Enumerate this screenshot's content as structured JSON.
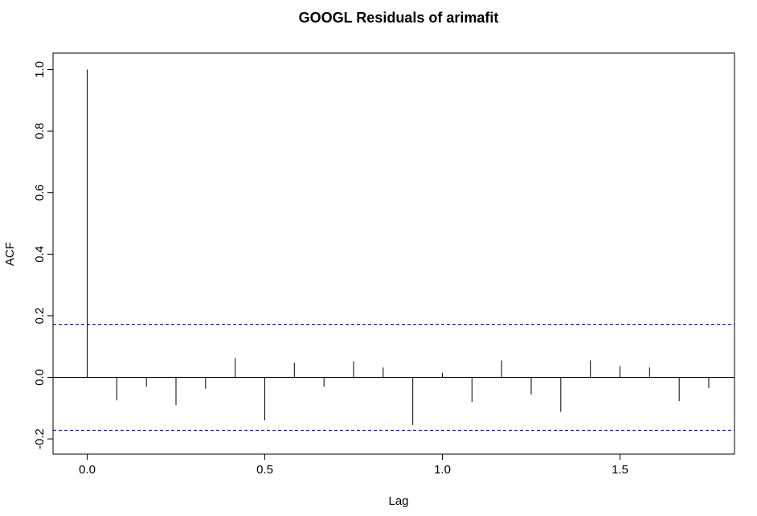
{
  "chart_data": {
    "type": "bar",
    "title": "GOOGL Residuals of arimafit",
    "xlabel": "Lag",
    "ylabel": "ACF",
    "xlim": [
      -0.07,
      1.82
    ],
    "ylim": [
      -0.23,
      1.05
    ],
    "x_ticks": [
      {
        "value": 0.0,
        "label": "0.0"
      },
      {
        "value": 0.5,
        "label": "0.5"
      },
      {
        "value": 1.0,
        "label": "1.0"
      },
      {
        "value": 1.5,
        "label": "1.5"
      }
    ],
    "y_ticks": [
      {
        "value": -0.2,
        "label": "-0.2"
      },
      {
        "value": 0.0,
        "label": "0.0"
      },
      {
        "value": 0.2,
        "label": "0.2"
      },
      {
        "value": 0.4,
        "label": "0.4"
      },
      {
        "value": 0.6,
        "label": "0.6"
      },
      {
        "value": 0.8,
        "label": "0.8"
      },
      {
        "value": 1.0,
        "label": "1.0"
      }
    ],
    "x": [
      0.0,
      0.0833,
      0.1667,
      0.25,
      0.3333,
      0.4167,
      0.5,
      0.5833,
      0.6667,
      0.75,
      0.8333,
      0.9167,
      1.0,
      1.0833,
      1.1667,
      1.25,
      1.3333,
      1.4167,
      1.5,
      1.5833,
      1.6667,
      1.75
    ],
    "values": [
      1.0,
      -0.075,
      -0.03,
      -0.09,
      -0.037,
      0.063,
      -0.14,
      0.048,
      -0.03,
      0.052,
      0.032,
      -0.155,
      0.015,
      -0.08,
      0.055,
      -0.055,
      -0.112,
      0.055,
      0.037,
      0.032,
      -0.077,
      -0.035
    ],
    "confidence_bound": 0.172,
    "zero_line": true,
    "grid": false,
    "colors": {
      "bars": "#000000",
      "confidence": "#00008b"
    }
  }
}
